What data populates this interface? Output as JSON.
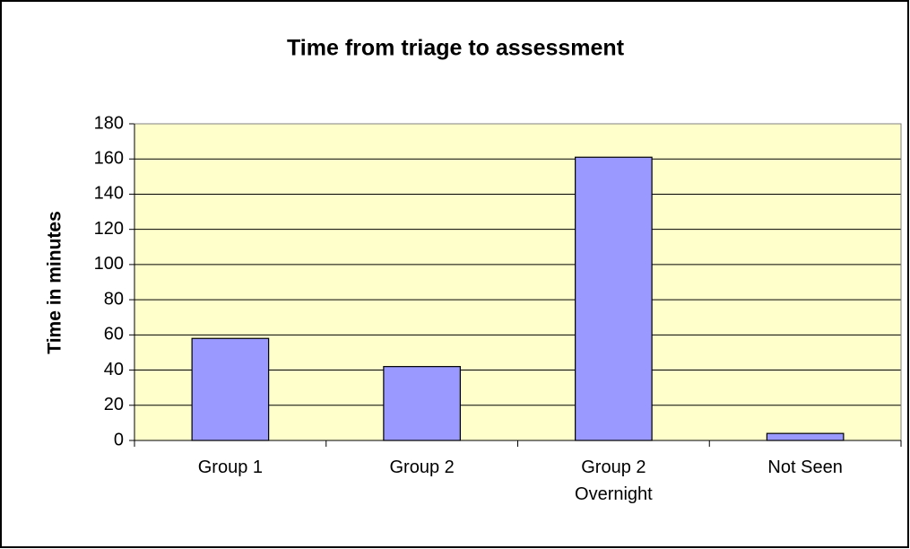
{
  "chart_data": {
    "type": "bar",
    "title": "Time from triage to assessment",
    "y_label": "Time in minutes",
    "categories": [
      "Group 1",
      "Group 2",
      "Group 2\nOvernight",
      "Not Seen"
    ],
    "values": [
      58,
      42,
      161,
      4
    ],
    "color": "#9999ff",
    "ylim": [
      0,
      180
    ],
    "yticks": [
      0,
      20,
      40,
      60,
      80,
      100,
      120,
      140,
      160,
      180
    ],
    "grid": true,
    "plot_background": "#ffffcc"
  }
}
